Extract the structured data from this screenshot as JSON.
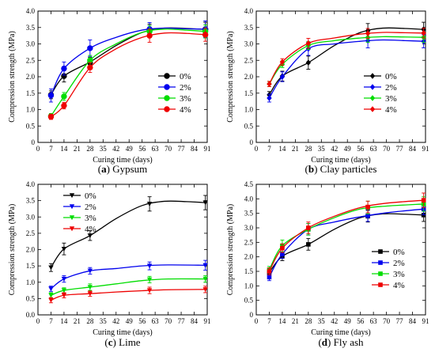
{
  "chart_data": [
    {
      "type": "line",
      "panel_letter": "(a)",
      "caption": "Gypsum",
      "xlabel": "Curing time (days)",
      "ylabel": "Compression strength (MPa)",
      "xlim": [
        0,
        91
      ],
      "ylim": [
        0,
        4.0
      ],
      "xticks": [
        0,
        7,
        14,
        21,
        28,
        35,
        42,
        49,
        56,
        63,
        70,
        77,
        84,
        91
      ],
      "yticks": [
        0,
        0.5,
        1.0,
        1.5,
        2.0,
        2.5,
        3.0,
        3.5,
        4.0
      ],
      "ytick_labels": [
        "0",
        "0.5",
        "1.0",
        "1.5",
        "2.0",
        "2.5",
        "3.0",
        "3.5",
        "4.0"
      ],
      "legend_position": "right",
      "marker": "circle",
      "x": [
        7,
        14,
        28,
        60,
        90
      ],
      "series": [
        {
          "name": "0%",
          "color": "#000000",
          "values": [
            1.45,
            2.02,
            2.43,
            3.4,
            3.44
          ],
          "errors": [
            0.12,
            0.18,
            0.16,
            0.2,
            0.22
          ],
          "curve": [
            [
              7,
              1.45
            ],
            [
              14,
              2.02
            ],
            [
              28,
              2.45
            ],
            [
              42,
              2.95
            ],
            [
              56,
              3.35
            ],
            [
              68,
              3.48
            ],
            [
              80,
              3.47
            ],
            [
              90,
              3.44
            ]
          ]
        },
        {
          "name": "2%",
          "color": "#0000ee",
          "values": [
            1.43,
            2.25,
            2.87,
            3.45,
            3.45
          ],
          "errors": [
            0.2,
            0.2,
            0.25,
            0.2,
            0.25
          ],
          "curve": [
            [
              7,
              1.43
            ],
            [
              14,
              2.25
            ],
            [
              28,
              2.87
            ],
            [
              42,
              3.2
            ],
            [
              56,
              3.42
            ],
            [
              68,
              3.48
            ],
            [
              80,
              3.46
            ],
            [
              90,
              3.45
            ]
          ]
        },
        {
          "name": "3%",
          "color": "#00dd00",
          "values": [
            0.8,
            1.4,
            2.5,
            3.38,
            3.38
          ],
          "errors": [
            0.08,
            0.12,
            0.15,
            0.18,
            0.2
          ],
          "curve": [
            [
              7,
              0.8
            ],
            [
              14,
              1.4
            ],
            [
              28,
              2.5
            ],
            [
              42,
              3.0
            ],
            [
              56,
              3.35
            ],
            [
              68,
              3.45
            ],
            [
              80,
              3.42
            ],
            [
              90,
              3.38
            ]
          ]
        },
        {
          "name": "4%",
          "color": "#ee0000",
          "values": [
            0.78,
            1.12,
            2.28,
            3.25,
            3.28
          ],
          "errors": [
            0.08,
            0.1,
            0.15,
            0.2,
            0.2
          ],
          "curve": [
            [
              7,
              0.78
            ],
            [
              14,
              1.12
            ],
            [
              28,
              2.28
            ],
            [
              42,
              2.85
            ],
            [
              56,
              3.2
            ],
            [
              68,
              3.33
            ],
            [
              80,
              3.32
            ],
            [
              90,
              3.28
            ]
          ]
        }
      ]
    },
    {
      "type": "line",
      "panel_letter": "(b)",
      "caption": "Clay particles",
      "xlabel": "Curing time (days)",
      "ylabel": "Compression strength (MPa)",
      "xlim": [
        0,
        91
      ],
      "ylim": [
        0,
        4.0
      ],
      "xticks": [
        0,
        7,
        14,
        21,
        28,
        35,
        42,
        49,
        56,
        63,
        70,
        77,
        84,
        91
      ],
      "yticks": [
        0,
        0.5,
        1.0,
        1.5,
        2.0,
        2.5,
        3.0,
        3.5,
        4.0
      ],
      "ytick_labels": [
        "0",
        "0.5",
        "1.0",
        "1.5",
        "2.0",
        "2.5",
        "3.0",
        "3.5",
        "4.0"
      ],
      "legend_position": "right",
      "marker": "diamond",
      "x": [
        7,
        14,
        28,
        60,
        90
      ],
      "series": [
        {
          "name": "0%",
          "color": "#000000",
          "values": [
            1.45,
            2.02,
            2.43,
            3.4,
            3.44
          ],
          "errors": [
            0.1,
            0.15,
            0.2,
            0.22,
            0.22
          ],
          "curve": [
            [
              7,
              1.45
            ],
            [
              14,
              2.02
            ],
            [
              28,
              2.43
            ],
            [
              42,
              2.95
            ],
            [
              56,
              3.35
            ],
            [
              68,
              3.48
            ],
            [
              80,
              3.47
            ],
            [
              90,
              3.44
            ]
          ]
        },
        {
          "name": "2%",
          "color": "#0000ee",
          "values": [
            1.35,
            2.0,
            2.85,
            3.1,
            3.08
          ],
          "errors": [
            0.12,
            0.15,
            0.2,
            0.22,
            0.2
          ],
          "curve": [
            [
              7,
              1.35
            ],
            [
              14,
              2.0
            ],
            [
              28,
              2.85
            ],
            [
              42,
              3.0
            ],
            [
              56,
              3.08
            ],
            [
              68,
              3.12
            ],
            [
              80,
              3.1
            ],
            [
              90,
              3.08
            ]
          ]
        },
        {
          "name": "3%",
          "color": "#00dd00",
          "values": [
            1.78,
            2.38,
            2.95,
            3.2,
            3.2
          ],
          "errors": [
            0.08,
            0.1,
            0.12,
            0.15,
            0.15
          ],
          "curve": [
            [
              7,
              1.78
            ],
            [
              14,
              2.38
            ],
            [
              28,
              2.95
            ],
            [
              42,
              3.1
            ],
            [
              56,
              3.18
            ],
            [
              68,
              3.22
            ],
            [
              80,
              3.21
            ],
            [
              90,
              3.2
            ]
          ]
        },
        {
          "name": "4%",
          "color": "#ee0000",
          "values": [
            1.78,
            2.45,
            3.02,
            3.32,
            3.33
          ],
          "errors": [
            0.08,
            0.1,
            0.15,
            0.15,
            0.15
          ],
          "curve": [
            [
              7,
              1.78
            ],
            [
              14,
              2.45
            ],
            [
              28,
              3.02
            ],
            [
              42,
              3.18
            ],
            [
              56,
              3.3
            ],
            [
              68,
              3.35
            ],
            [
              80,
              3.34
            ],
            [
              90,
              3.33
            ]
          ]
        }
      ]
    },
    {
      "type": "line",
      "panel_letter": "(c)",
      "caption": "Lime",
      "xlabel": "Curing time (days)",
      "ylabel": "Compression strength (MPa)",
      "xlim": [
        0,
        91
      ],
      "ylim": [
        0,
        4.0
      ],
      "xticks": [
        0,
        7,
        14,
        21,
        28,
        35,
        42,
        49,
        56,
        63,
        70,
        77,
        84,
        91
      ],
      "yticks": [
        0,
        0.5,
        1.0,
        1.5,
        2.0,
        2.5,
        3.0,
        3.5,
        4.0
      ],
      "ytick_labels": [
        "0.0",
        "0.5",
        "1.0",
        "1.5",
        "2.0",
        "2.5",
        "3.0",
        "3.5",
        "4.0"
      ],
      "legend_position": "top-left",
      "marker": "triangle-down",
      "x": [
        7,
        14,
        28,
        60,
        90
      ],
      "series": [
        {
          "name": "0%",
          "color": "#000000",
          "values": [
            1.45,
            2.02,
            2.43,
            3.4,
            3.44
          ],
          "errors": [
            0.12,
            0.18,
            0.15,
            0.22,
            0.22
          ],
          "curve": [
            [
              7,
              1.45
            ],
            [
              14,
              2.02
            ],
            [
              28,
              2.43
            ],
            [
              42,
              2.95
            ],
            [
              56,
              3.35
            ],
            [
              68,
              3.48
            ],
            [
              80,
              3.47
            ],
            [
              90,
              3.44
            ]
          ]
        },
        {
          "name": "2%",
          "color": "#0000ee",
          "values": [
            0.8,
            1.1,
            1.35,
            1.5,
            1.52
          ],
          "errors": [
            0.08,
            0.1,
            0.1,
            0.12,
            0.15
          ],
          "curve": [
            [
              7,
              0.8
            ],
            [
              14,
              1.1
            ],
            [
              28,
              1.35
            ],
            [
              42,
              1.42
            ],
            [
              56,
              1.5
            ],
            [
              70,
              1.53
            ],
            [
              90,
              1.52
            ]
          ]
        },
        {
          "name": "3%",
          "color": "#00dd00",
          "values": [
            0.6,
            0.75,
            0.85,
            1.08,
            1.1
          ],
          "errors": [
            0.08,
            0.08,
            0.1,
            0.1,
            0.1
          ],
          "curve": [
            [
              7,
              0.6
            ],
            [
              14,
              0.75
            ],
            [
              28,
              0.85
            ],
            [
              42,
              0.95
            ],
            [
              56,
              1.05
            ],
            [
              70,
              1.1
            ],
            [
              90,
              1.1
            ]
          ]
        },
        {
          "name": "4%",
          "color": "#ee0000",
          "values": [
            0.45,
            0.6,
            0.65,
            0.75,
            0.78
          ],
          "errors": [
            0.08,
            0.08,
            0.08,
            0.1,
            0.1
          ],
          "curve": [
            [
              7,
              0.45
            ],
            [
              14,
              0.6
            ],
            [
              28,
              0.65
            ],
            [
              42,
              0.7
            ],
            [
              56,
              0.74
            ],
            [
              70,
              0.77
            ],
            [
              90,
              0.78
            ]
          ]
        }
      ]
    },
    {
      "type": "line",
      "panel_letter": "(d)",
      "caption": "Fly ash",
      "xlabel": "Curing time (days)",
      "ylabel": "Compression strength (MPa)",
      "xlim": [
        0,
        91
      ],
      "ylim": [
        0,
        4.5
      ],
      "xticks": [
        0,
        7,
        14,
        21,
        28,
        35,
        42,
        49,
        56,
        63,
        70,
        77,
        84,
        91
      ],
      "yticks": [
        0,
        0.5,
        1.0,
        1.5,
        2.0,
        2.5,
        3.0,
        3.5,
        4.0,
        4.5
      ],
      "ytick_labels": [
        "0",
        "0.5",
        "1.0",
        "1.5",
        "2.0",
        "2.5",
        "3.0",
        "3.5",
        "4.0",
        "4.5"
      ],
      "legend_position": "bottom-right",
      "marker": "square",
      "x": [
        7,
        14,
        28,
        60,
        90
      ],
      "series": [
        {
          "name": "0%",
          "color": "#000000",
          "values": [
            1.45,
            2.02,
            2.43,
            3.4,
            3.44
          ],
          "errors": [
            0.1,
            0.15,
            0.2,
            0.2,
            0.22
          ],
          "curve": [
            [
              7,
              1.45
            ],
            [
              14,
              2.02
            ],
            [
              28,
              2.43
            ],
            [
              42,
              2.95
            ],
            [
              56,
              3.35
            ],
            [
              68,
              3.48
            ],
            [
              80,
              3.47
            ],
            [
              90,
              3.44
            ]
          ]
        },
        {
          "name": "2%",
          "color": "#0000ee",
          "values": [
            1.3,
            2.1,
            2.95,
            3.42,
            3.65
          ],
          "errors": [
            0.12,
            0.15,
            0.2,
            0.2,
            0.2
          ],
          "curve": [
            [
              7,
              1.3
            ],
            [
              14,
              2.1
            ],
            [
              28,
              2.95
            ],
            [
              42,
              3.2
            ],
            [
              56,
              3.38
            ],
            [
              70,
              3.52
            ],
            [
              90,
              3.65
            ]
          ]
        },
        {
          "name": "3%",
          "color": "#00dd00",
          "values": [
            1.55,
            2.38,
            2.95,
            3.7,
            3.82
          ],
          "errors": [
            0.12,
            0.2,
            0.2,
            0.22,
            0.25
          ],
          "curve": [
            [
              7,
              1.55
            ],
            [
              14,
              2.38
            ],
            [
              28,
              2.95
            ],
            [
              42,
              3.35
            ],
            [
              56,
              3.65
            ],
            [
              70,
              3.75
            ],
            [
              90,
              3.82
            ]
          ]
        },
        {
          "name": "4%",
          "color": "#ee0000",
          "values": [
            1.5,
            2.3,
            3.0,
            3.72,
            3.95
          ],
          "errors": [
            0.12,
            0.15,
            0.2,
            0.2,
            0.25
          ],
          "curve": [
            [
              7,
              1.5
            ],
            [
              14,
              2.3
            ],
            [
              28,
              3.0
            ],
            [
              42,
              3.4
            ],
            [
              56,
              3.7
            ],
            [
              70,
              3.85
            ],
            [
              90,
              3.95
            ]
          ]
        }
      ]
    }
  ]
}
